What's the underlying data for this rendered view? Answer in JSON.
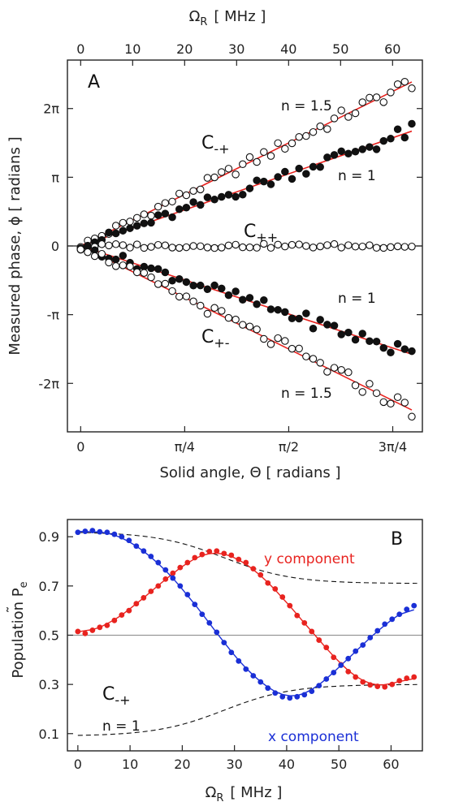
{
  "colors": {
    "fit_line": "#e8231f",
    "axis": "#222222",
    "red_points": "#e8231f",
    "blue_points": "#1a2fd6",
    "zero_line": "#888888"
  },
  "chart_data": [
    {
      "type": "scatter",
      "panel_label": "A",
      "xlabel": "Solid angle, Θ  [ radians ]",
      "ylabel": "Measured phase, ϕ  [ radians ]",
      "top_axis_label": "Ω",
      "top_axis_label_sub": "R",
      "top_axis_unit": "[ MHz ]",
      "xlim": [
        -0.1,
        2.58
      ],
      "ylim": [
        -8.5,
        8.5
      ],
      "x_ticks": [
        {
          "value": 0,
          "label": "0"
        },
        {
          "value": 0.785398,
          "label": "π/4"
        },
        {
          "value": 1.570796,
          "label": "π/2"
        },
        {
          "value": 2.356194,
          "label": "3π/4"
        }
      ],
      "y_ticks": [
        {
          "value": 6.283185,
          "label": "2π"
        },
        {
          "value": 3.141593,
          "label": "π"
        },
        {
          "value": 0,
          "label": "0"
        },
        {
          "value": -3.141593,
          "label": "-π"
        },
        {
          "value": -6.283185,
          "label": "-2π"
        }
      ],
      "top_ticks": [
        {
          "value": 0,
          "label": "0"
        },
        {
          "value": 10,
          "label": "10"
        },
        {
          "value": 20,
          "label": "20"
        },
        {
          "value": 30,
          "label": "30"
        },
        {
          "value": 40,
          "label": "40"
        },
        {
          "value": 50,
          "label": "50"
        },
        {
          "value": 60,
          "label": "60"
        }
      ],
      "top_axis_mapping": {
        "theta_per_mhz": 0.03925
      },
      "annotations": {
        "c_minus_plus": "C",
        "c_minus_plus_sub": "-+",
        "c_plus_plus": "C",
        "c_plus_plus_sub": "++",
        "c_plus_minus": "C",
        "c_plus_minus_sub": "+-",
        "n_upper_15": "n = 1.5",
        "n_upper_1": "n = 1",
        "n_lower_1": "n = 1",
        "n_lower_15": "n = 1.5"
      },
      "series": [
        {
          "marker": "open",
          "slope": 3.0,
          "fit": true,
          "n_points": 48
        },
        {
          "marker": "filled",
          "slope": 2.1,
          "fit": true,
          "n_points": 48
        },
        {
          "marker": "open",
          "slope": 0.0,
          "fit": true,
          "n_points": 48
        },
        {
          "marker": "filled",
          "slope": -1.98,
          "fit": true,
          "n_points": 48
        },
        {
          "marker": "open",
          "slope": -3.0,
          "fit": true,
          "n_points": 48
        }
      ]
    },
    {
      "type": "scatter",
      "panel_label": "B",
      "xlabel": "Ω",
      "xlabel_sub": "R",
      "xlabel_unit": "[ MHz ]",
      "ylabel": "Population ",
      "ylabel_symbol": "P",
      "ylabel_sub": "e",
      "ylabel_tilde": "˜",
      "xlim": [
        -2,
        66
      ],
      "ylim": [
        0.03,
        0.97
      ],
      "x_ticks": [
        {
          "value": 0,
          "label": "0"
        },
        {
          "value": 10,
          "label": "10"
        },
        {
          "value": 20,
          "label": "20"
        },
        {
          "value": 30,
          "label": "30"
        },
        {
          "value": 40,
          "label": "40"
        },
        {
          "value": 50,
          "label": "50"
        },
        {
          "value": 60,
          "label": "60"
        }
      ],
      "y_ticks": [
        {
          "value": 0.9,
          "label": "0.9"
        },
        {
          "value": 0.7,
          "label": "0.7"
        },
        {
          "value": 0.5,
          "label": "0.5"
        },
        {
          "value": 0.3,
          "label": "0.3"
        },
        {
          "value": 0.1,
          "label": "0.1"
        }
      ],
      "reference_line": 0.5,
      "envelope": {
        "upper_start": 0.92,
        "upper_end": 0.71,
        "lower_start": 0.09,
        "lower_end": 0.3
      },
      "annotations": {
        "c_minus_plus": "C",
        "c_minus_plus_sub": "-+",
        "n_label": "n = 1",
        "y_component": "y component",
        "x_component": "x component"
      },
      "series": [
        {
          "name": "y component",
          "color": "#e8231f",
          "x": [
            0,
            1.4,
            2.8,
            4.2,
            5.6,
            7,
            8.4,
            9.8,
            11.2,
            12.6,
            14,
            15.4,
            16.8,
            18.2,
            19.6,
            21,
            22.4,
            23.8,
            25.2,
            26.6,
            28,
            29.4,
            30.8,
            32.2,
            33.6,
            35,
            36.4,
            37.8,
            39.2,
            40.6,
            42,
            43.4,
            44.8,
            46.2,
            47.6,
            49,
            50.4,
            51.8,
            53.2,
            54.6,
            56,
            57.4,
            58.8,
            60.2,
            61.6,
            63,
            64.4
          ],
          "y": [
            0.515,
            0.507,
            0.52,
            0.532,
            0.54,
            0.56,
            0.582,
            0.6,
            0.628,
            0.652,
            0.678,
            0.7,
            0.728,
            0.752,
            0.775,
            0.795,
            0.815,
            0.828,
            0.84,
            0.842,
            0.832,
            0.825,
            0.808,
            0.795,
            0.77,
            0.745,
            0.712,
            0.688,
            0.655,
            0.62,
            0.58,
            0.55,
            0.515,
            0.48,
            0.45,
            0.41,
            0.38,
            0.352,
            0.33,
            0.31,
            0.298,
            0.292,
            0.29,
            0.3,
            0.315,
            0.325,
            0.33
          ],
          "fit": {
            "mid": 0.58,
            "amp": 0.26,
            "k": 0.1,
            "phase": 0.82,
            "x_end": 65
          }
        },
        {
          "name": "x component",
          "color": "#1a2fd6",
          "x": [
            0,
            1.4,
            2.8,
            4.2,
            5.6,
            7,
            8.4,
            9.8,
            11.2,
            12.6,
            14,
            15.4,
            16.8,
            18.2,
            19.6,
            21,
            22.4,
            23.8,
            25.2,
            26.6,
            28,
            29.4,
            30.8,
            32.2,
            33.6,
            35,
            36.4,
            37.8,
            39.2,
            40.6,
            42,
            43.4,
            44.8,
            46.2,
            47.6,
            49,
            50.4,
            51.8,
            53.2,
            54.6,
            56,
            57.4,
            58.8,
            60.2,
            61.6,
            63,
            64.4
          ],
          "y": [
            0.918,
            0.922,
            0.925,
            0.92,
            0.918,
            0.91,
            0.9,
            0.885,
            0.862,
            0.842,
            0.82,
            0.795,
            0.765,
            0.732,
            0.7,
            0.665,
            0.625,
            0.585,
            0.55,
            0.512,
            0.47,
            0.43,
            0.395,
            0.362,
            0.335,
            0.31,
            0.285,
            0.265,
            0.25,
            0.245,
            0.25,
            0.258,
            0.272,
            0.295,
            0.322,
            0.348,
            0.378,
            0.405,
            0.435,
            0.46,
            0.49,
            0.518,
            0.545,
            0.565,
            0.585,
            0.605,
            0.62
          ],
          "fit": {
            "mid": 0.58,
            "amp": 0.34,
            "k": 0.082,
            "phase": 0.0,
            "x_end": 65
          }
        }
      ]
    }
  ]
}
